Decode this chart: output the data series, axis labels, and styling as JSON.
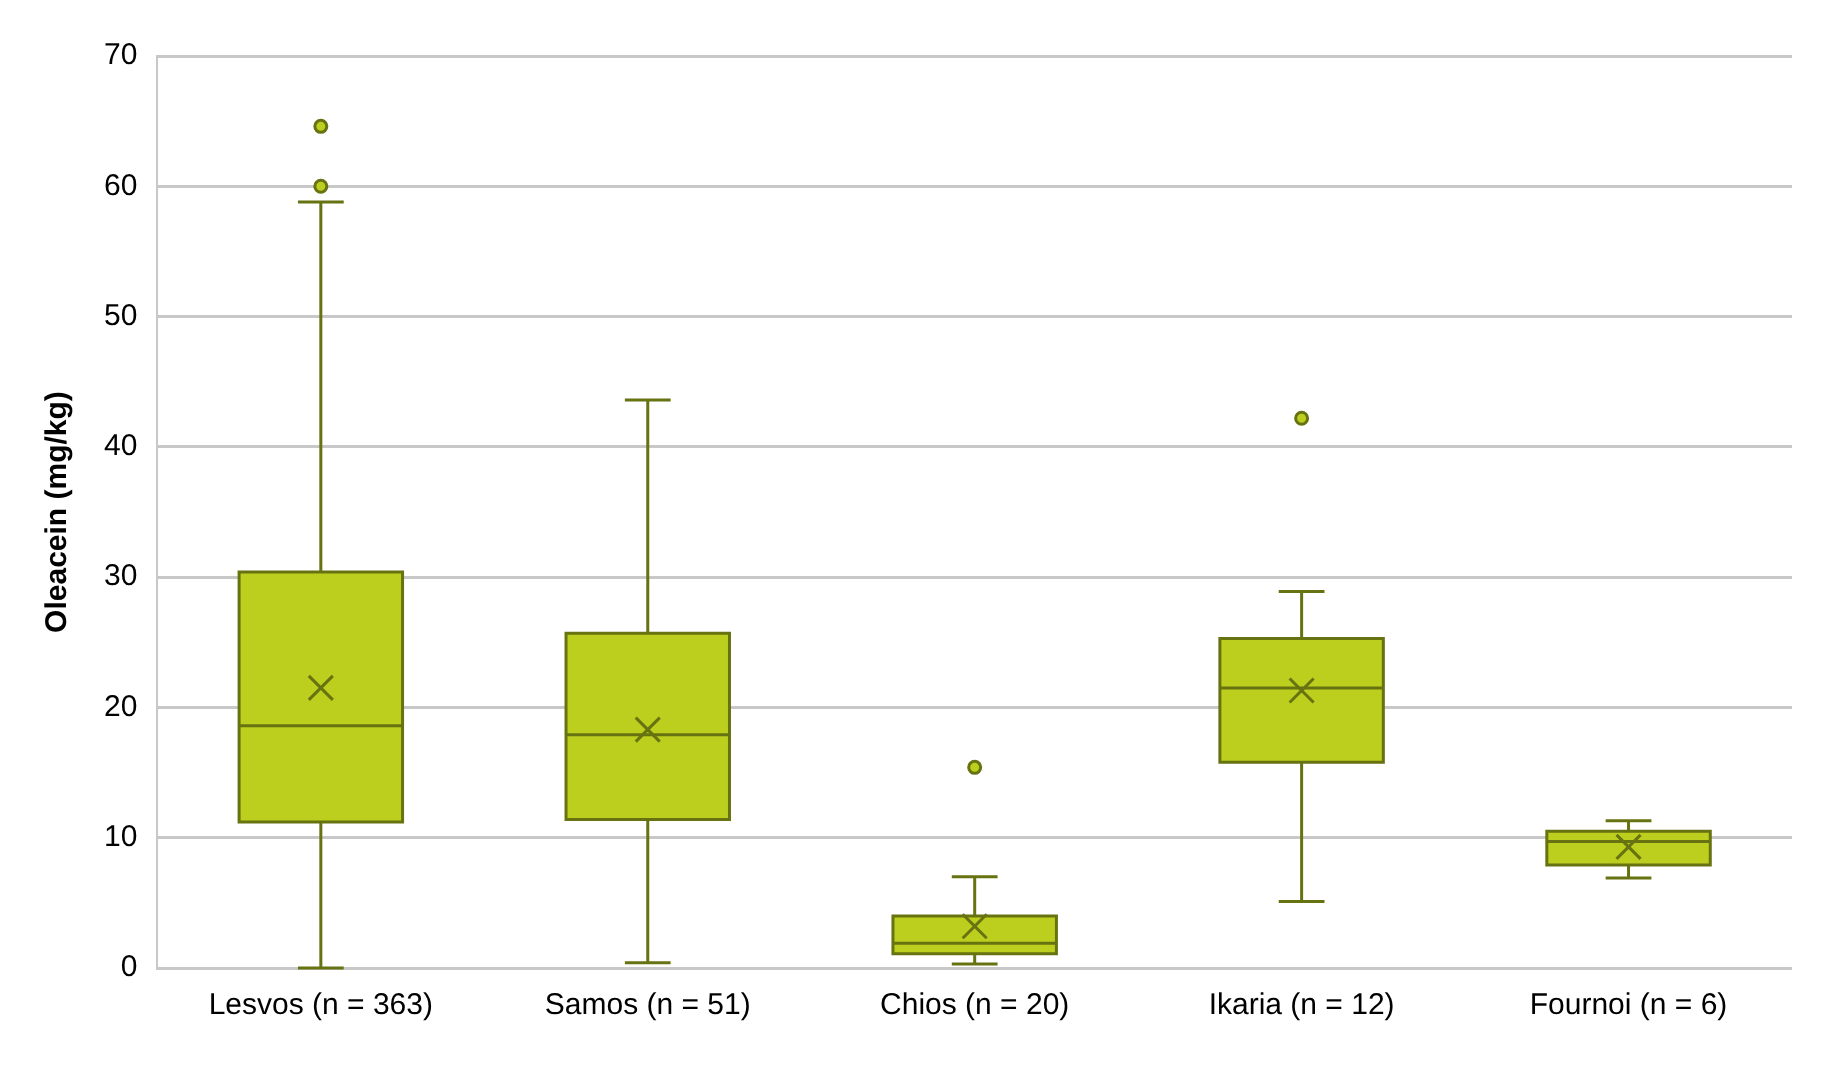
{
  "chart_data": {
    "type": "box",
    "ylabel": "Oleacein (mg/kg)",
    "categories": [
      "Lesvos (n = 363)",
      "Samos (n = 51)",
      "Chios (n = 20)",
      "Ikaria (n = 12)",
      "Fournoi (n = 6)"
    ],
    "color": "#bccf1e",
    "boxes": [
      {
        "low": 0,
        "q1": 11.2,
        "median": 18.6,
        "q3": 30.4,
        "high": 58.8,
        "mean": 21.5,
        "outliers": [
          60,
          64.6
        ]
      },
      {
        "low": 0.4,
        "q1": 11.4,
        "median": 17.9,
        "q3": 25.7,
        "high": 43.6,
        "mean": 18.3
      },
      {
        "low": 0.3,
        "q1": 1.1,
        "median": 1.9,
        "q3": 4.0,
        "high": 7.0,
        "mean": 3.2,
        "outliers": [
          15.4
        ]
      },
      {
        "low": 5.1,
        "q1": 15.8,
        "median": 21.5,
        "q3": 25.3,
        "high": 28.9,
        "mean": 21.3,
        "outliers": [
          42.2
        ]
      },
      {
        "low": 6.9,
        "q1": 7.9,
        "median": 9.7,
        "q3": 10.5,
        "high": 11.3,
        "mean": 9.3
      }
    ],
    "ylim": [
      0,
      70
    ],
    "yticks": [
      0,
      10,
      20,
      30,
      40,
      50,
      60,
      70
    ],
    "grid": "y",
    "legend": false
  }
}
